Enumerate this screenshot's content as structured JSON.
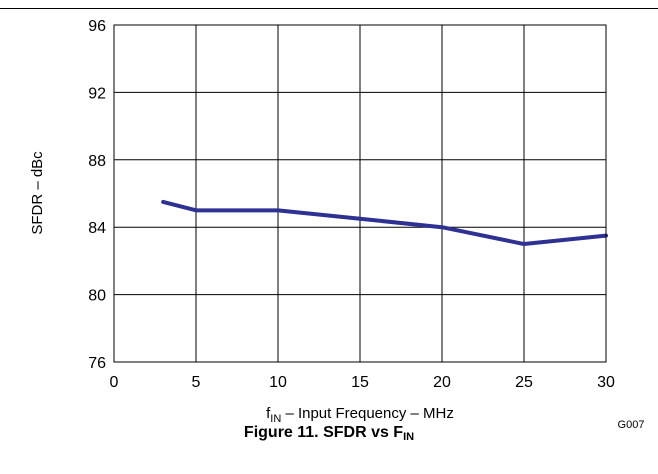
{
  "chart_data": {
    "type": "line",
    "xlabel": {
      "main": "f",
      "sub": "IN",
      "rest": " – Input Frequency – MHz"
    },
    "ylabel": "SFDR – dBc",
    "xlim": [
      0,
      30
    ],
    "ylim": [
      76,
      96
    ],
    "xticks": [
      0,
      5,
      10,
      15,
      20,
      25,
      30
    ],
    "yticks": [
      76,
      80,
      84,
      88,
      92,
      96
    ],
    "grid": true,
    "line_color": "#2e3192",
    "series": [
      {
        "x": [
          3,
          5,
          10,
          15,
          20,
          25,
          30
        ],
        "y": [
          85.5,
          85.0,
          85.0,
          84.5,
          84.0,
          83.0,
          83.5
        ]
      }
    ],
    "code": "G007"
  },
  "caption": {
    "prefix": "Figure 11. SFDR vs F",
    "sub": "IN"
  }
}
